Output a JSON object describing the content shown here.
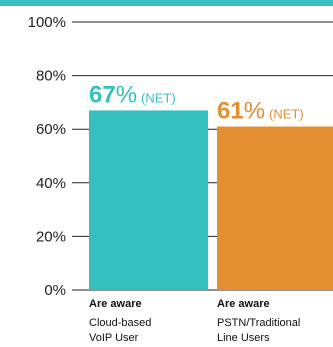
{
  "colors": {
    "band": "#3bbfbf",
    "series": [
      "#35c0c0",
      "#e38f32"
    ],
    "axis": "#222222"
  },
  "chart_data": {
    "type": "bar",
    "ylim": [
      0,
      100
    ],
    "grid": true,
    "yticks": [
      "0%",
      "20%",
      "40%",
      "60%",
      "80%",
      "100%"
    ],
    "categories": [
      {
        "bold": "Are aware",
        "lines": [
          "Cloud-based",
          "VoIP User"
        ],
        "value": 67,
        "label_number": "67",
        "label_percent": "%",
        "label_suffix": "(NET)"
      },
      {
        "bold": "Are aware",
        "lines": [
          "PSTN/Traditional",
          "Line Users"
        ],
        "value": 61,
        "label_number": "61",
        "label_percent": "%",
        "label_suffix": "(NET)"
      }
    ]
  }
}
